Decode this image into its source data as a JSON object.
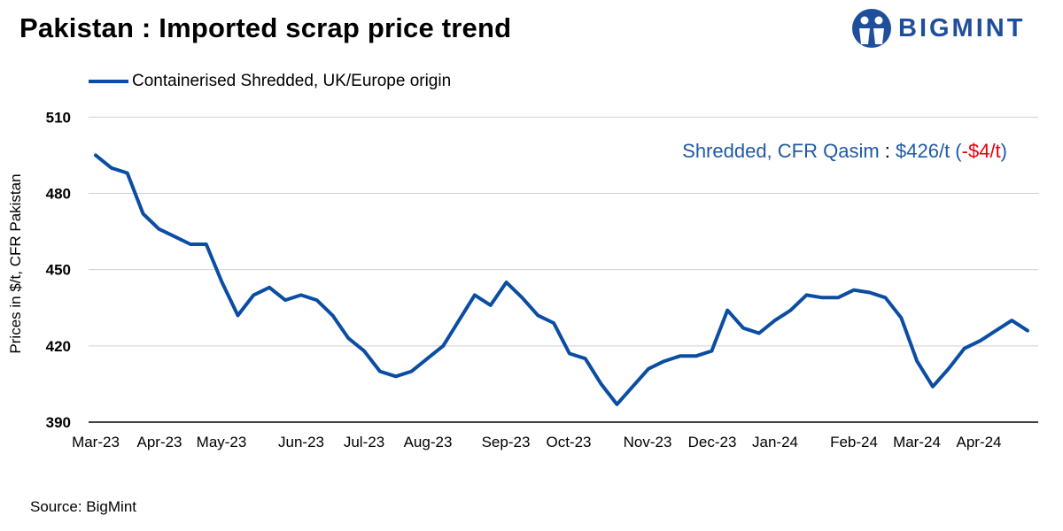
{
  "header": {
    "title": "Pakistan : Imported scrap price trend",
    "logo_text": "BIGMINT"
  },
  "footer": {
    "source": "Source: BigMint"
  },
  "colors": {
    "series": "#0a4da3",
    "negative": "#e8000b",
    "annotation": "#1f5aa6"
  },
  "annotation": {
    "label": "Shredded, CFR Qasim",
    "separator": " : ",
    "value": "$426/t",
    "paren_open": " (",
    "change": "-$4/t",
    "paren_close": ")"
  },
  "chart_data": {
    "type": "line",
    "title": "Pakistan : Imported scrap price trend",
    "ylabel": "Prices in $/t, CFR Pakistan",
    "xlabel": "",
    "ylim": [
      390,
      515
    ],
    "yticks": [
      390,
      420,
      450,
      480,
      510
    ],
    "grid": "horizontal",
    "legend": "top-left",
    "x_tick_labels": [
      "Mar-23",
      "Apr-23",
      "May-23",
      "Jun-23",
      "Jul-23",
      "Aug-23",
      "Sep-23",
      "Oct-23",
      "Nov-23",
      "Dec-23",
      "Jan-24",
      "Feb-24",
      "Mar-24",
      "Apr-24"
    ],
    "series": [
      {
        "name": "Containerised Shredded, UK/Europe origin",
        "values": [
          495,
          490,
          488,
          472,
          466,
          463,
          460,
          460,
          445,
          432,
          440,
          443,
          438,
          440,
          438,
          432,
          423,
          418,
          410,
          408,
          410,
          415,
          420,
          430,
          440,
          436,
          445,
          439,
          432,
          429,
          417,
          415,
          405,
          397,
          404,
          411,
          414,
          416,
          416,
          418,
          434,
          427,
          425,
          430,
          434,
          440,
          439,
          439,
          442,
          441,
          439,
          431,
          414,
          404,
          411,
          419,
          422,
          426,
          430,
          426
        ]
      }
    ]
  }
}
